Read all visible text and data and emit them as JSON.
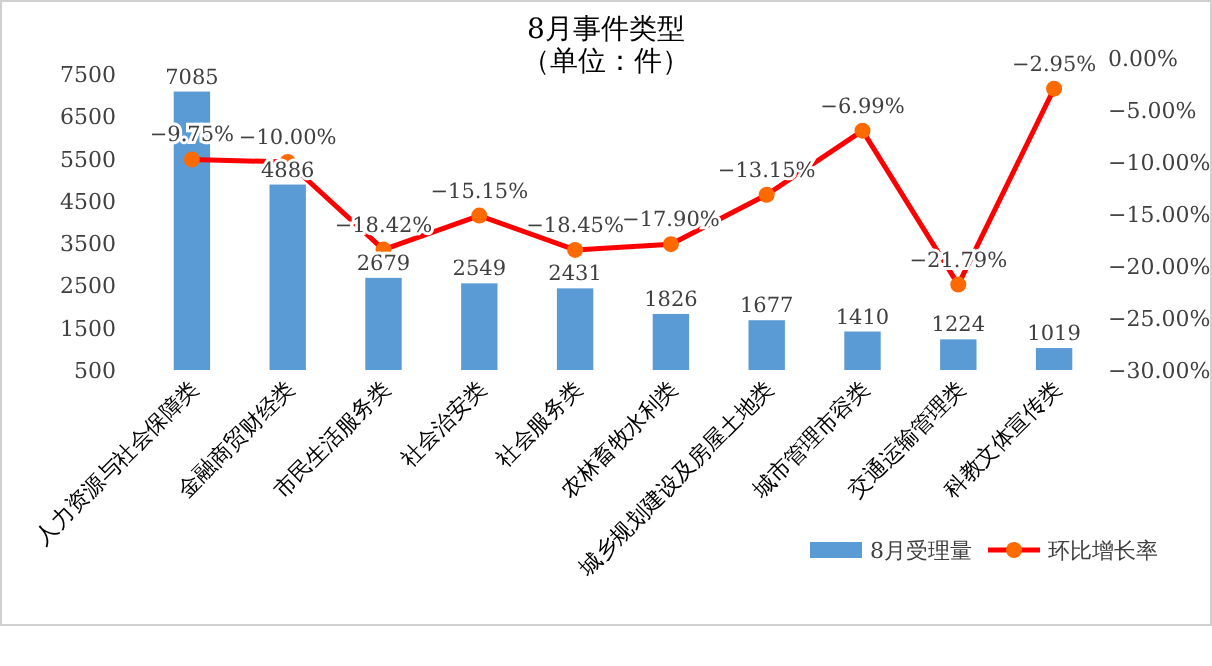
{
  "chart_data": {
    "type": "bar",
    "title": "8月事件类型",
    "subtitle": "（单位：件）",
    "categories": [
      "人力资源与社会保障类",
      "金融商贸财经类",
      "市民生活服务类",
      "社会治安类",
      "社会服务类",
      "农林畜牧水利类",
      "城乡规划建设及房屋土地类",
      "城市管理市容类",
      "交通运输管理类",
      "科教文体宣传类"
    ],
    "series": [
      {
        "name": "8月受理量",
        "color": "#5b9bd5",
        "values": [
          7085,
          4886,
          2679,
          2549,
          2431,
          1826,
          1677,
          1410,
          1224,
          1019
        ]
      },
      {
        "name": "环比增长率",
        "type": "line",
        "axis": "y2",
        "color": "#ff0000",
        "marker": "circle",
        "values": [
          -9.75,
          -10.0,
          -18.42,
          -15.15,
          -18.45,
          -17.9,
          -13.15,
          -6.99,
          -21.79,
          -2.95
        ],
        "value_labels": [
          "−9.75%",
          "−10.00%",
          "−18.42%",
          "−15.15%",
          "−18.45%",
          "−17.90%",
          "−13.15%",
          "−6.99%",
          "−21.79%",
          "−2.95%"
        ]
      }
    ],
    "ylim": [
      500,
      7500
    ],
    "yticks": [
      500,
      1500,
      2500,
      3500,
      4500,
      5500,
      6500,
      7500
    ],
    "y2lim": [
      -30,
      0
    ],
    "y2ticks": [
      {
        "value": 0,
        "label": "0.00%"
      },
      {
        "value": -5,
        "label": "−5.00%"
      },
      {
        "value": -10,
        "label": "−10.00%"
      },
      {
        "value": -15,
        "label": "−15.00%"
      },
      {
        "value": -20,
        "label": "−20.00%"
      },
      {
        "value": -25,
        "label": "−25.00%"
      },
      {
        "value": -30,
        "label": "−30.00%"
      }
    ],
    "data_labels": true,
    "legend": "bottom right",
    "grid": false
  }
}
